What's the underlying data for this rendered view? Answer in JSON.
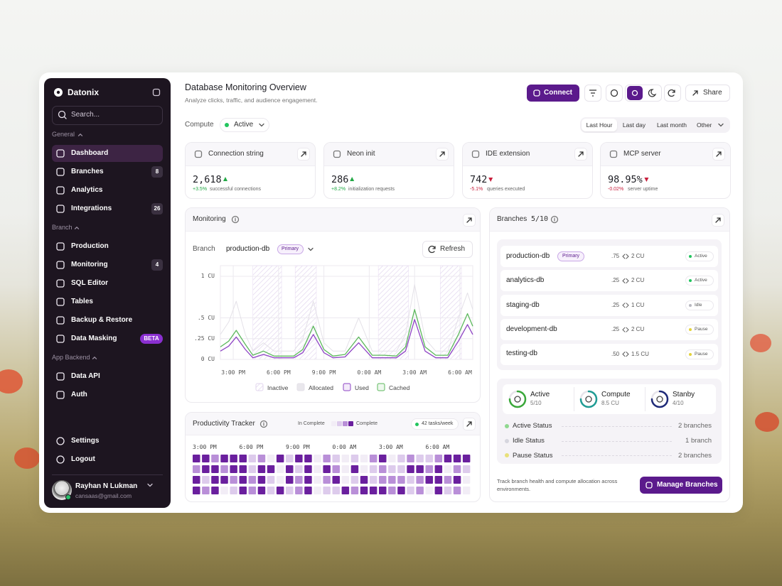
{
  "sidebar": {
    "brand": "Datonix",
    "search_placeholder": "Search...",
    "sections": [
      {
        "title": "General",
        "items": [
          {
            "label": "Dashboard",
            "active": true
          },
          {
            "label": "Branches",
            "badge": 8
          },
          {
            "label": "Analytics"
          },
          {
            "label": "Integrations",
            "badge": 26
          }
        ]
      },
      {
        "title": "Branch",
        "items": [
          {
            "label": "Production"
          },
          {
            "label": "Monitoring",
            "badge": 4
          },
          {
            "label": "SQL Editor"
          },
          {
            "label": "Tables"
          },
          {
            "label": "Backup & Restore"
          },
          {
            "label": "Data Masking",
            "tag": "BETA"
          }
        ]
      },
      {
        "title": "App Backend",
        "items": [
          {
            "label": "Data API"
          },
          {
            "label": "Auth"
          }
        ]
      }
    ],
    "bottom_items": [
      {
        "label": "Settings"
      },
      {
        "label": "Logout"
      }
    ],
    "user": {
      "name": "Rayhan N Lukman",
      "email": "cansaas@gmail.com"
    }
  },
  "header": {
    "title": "Database Monitoring Overview",
    "subtitle": "Analyze clicks, traffic, and audience engagement.",
    "connect": "Connect",
    "share": "Share"
  },
  "compute": {
    "label": "Compute",
    "status": "Active"
  },
  "time_filters": [
    "Last Hour",
    "Last day",
    "Last month",
    "Other"
  ],
  "time_filter_active": 0,
  "stats": [
    {
      "title": "Connection string",
      "value": "2,618",
      "trend": "up",
      "delta": "+3.5%",
      "caption": "successful connections"
    },
    {
      "title": "Neon init",
      "value": "286",
      "trend": "up",
      "delta": "+8.2%",
      "caption": "initialization requests"
    },
    {
      "title": "IDE extension",
      "value": "742",
      "trend": "down",
      "delta": "-5.1%",
      "caption": "queries executed"
    },
    {
      "title": "MCP server",
      "value": "98.95%",
      "trend": "down",
      "delta": "-0.02%",
      "caption": "server uptime"
    }
  ],
  "chart_data": [
    {
      "type": "line",
      "title": "Monitoring",
      "branch_label": "Branch",
      "branch": "production-db",
      "branch_badge": "Primary",
      "refresh_label": "Refresh",
      "x": [
        -0.85,
        -0.3,
        0.2,
        0.8,
        1.3,
        2,
        2.7,
        3.2,
        4,
        4.6,
        5.3,
        6,
        6.6,
        7.4,
        8.3,
        9.2,
        10,
        10.8,
        11.4,
        12,
        12.7,
        13.4,
        14.2,
        14.9,
        15.5,
        15.85
      ],
      "xlim": [
        -0.85,
        15.85
      ],
      "xticks": [
        {
          "value": 0,
          "label": "3:00 PM"
        },
        {
          "value": 3,
          "label": "6:00 PM"
        },
        {
          "value": 6,
          "label": "9:00 PM"
        },
        {
          "value": 9,
          "label": "0:00 AM"
        },
        {
          "value": 12,
          "label": "3:00 AM"
        },
        {
          "value": 15,
          "label": "6:00 AM"
        }
      ],
      "ylim": [
        0,
        1
      ],
      "yticks": [
        {
          "value": 0,
          "label": "0 CU"
        },
        {
          "value": 0.25,
          "label": ".25 CU"
        },
        {
          "value": 0.5,
          "label": ".5 CU"
        },
        {
          "value": 1,
          "label": "1 CU"
        }
      ],
      "grid": true,
      "inactive_label": "Inactive",
      "inactive_ranges": [
        [
          1.3,
          3.2
        ],
        [
          4.1,
          5.5
        ],
        [
          9.6,
          11.6
        ],
        [
          13.7,
          15.1
        ]
      ],
      "series": [
        {
          "name": "Allocated",
          "color": "#e4e1e8",
          "values": [
            0.3,
            0.45,
            0.7,
            0.3,
            0.1,
            0.2,
            0.1,
            0.1,
            0.1,
            0.25,
            0.7,
            0.2,
            0.1,
            0.1,
            0.5,
            0.1,
            0.1,
            0.1,
            0.3,
            0.9,
            0.25,
            0.1,
            0.1,
            0.5,
            0.8,
            0.6
          ]
        },
        {
          "name": "Used",
          "color": "#8e44c4",
          "values": [
            0.1,
            0.16,
            0.27,
            0.12,
            0.02,
            0.06,
            0.02,
            0.02,
            0.02,
            0.08,
            0.3,
            0.08,
            0.02,
            0.03,
            0.2,
            0.02,
            0.02,
            0.02,
            0.1,
            0.48,
            0.1,
            0.02,
            0.02,
            0.22,
            0.42,
            0.3
          ]
        },
        {
          "name": "Cached",
          "color": "#5cb85c",
          "values": [
            0.15,
            0.22,
            0.35,
            0.18,
            0.05,
            0.1,
            0.04,
            0.04,
            0.04,
            0.12,
            0.4,
            0.12,
            0.04,
            0.06,
            0.27,
            0.05,
            0.05,
            0.04,
            0.15,
            0.6,
            0.15,
            0.05,
            0.05,
            0.3,
            0.55,
            0.4
          ]
        }
      ]
    },
    {
      "type": "heatmap",
      "title": "Productivity Tracker",
      "legend_low": "In Complete",
      "legend_high": "Complete",
      "badge": "42 tasks/week",
      "columns": [
        "3:00 PM",
        "6:00 PM",
        "9:00 PM",
        "0:00 AM",
        "3:00 AM",
        "6:00 AM"
      ],
      "colors": [
        "#f2edf6",
        "#ddcbec",
        "#b98fd8",
        "#6a1f9e"
      ],
      "values": [
        [
          3,
          3,
          2,
          3,
          3,
          3,
          1,
          2,
          0,
          3,
          1,
          3,
          3,
          0,
          2,
          1,
          0,
          1,
          0,
          2,
          3,
          0,
          1,
          2,
          1,
          1,
          2,
          3,
          3,
          3
        ],
        [
          2,
          3,
          3,
          2,
          3,
          3,
          1,
          3,
          3,
          0,
          3,
          1,
          3,
          0,
          3,
          2,
          0,
          3,
          0,
          1,
          2,
          1,
          1,
          3,
          3,
          2,
          3,
          0,
          2,
          1
        ],
        [
          3,
          1,
          3,
          3,
          2,
          3,
          2,
          3,
          1,
          0,
          3,
          2,
          3,
          0,
          2,
          3,
          0,
          1,
          3,
          1,
          2,
          2,
          2,
          1,
          2,
          3,
          3,
          2,
          3,
          0
        ],
        [
          3,
          2,
          3,
          0,
          1,
          3,
          2,
          3,
          1,
          3,
          1,
          2,
          3,
          0,
          1,
          1,
          3,
          2,
          3,
          3,
          3,
          2,
          3,
          1,
          2,
          0,
          3,
          1,
          2,
          0
        ]
      ]
    }
  ],
  "branches": {
    "title": "Branches",
    "count": "5/10",
    "rows": [
      {
        "name": "production-db",
        "badge": "Primary",
        "ratio": ".75",
        "compute": "2 CU",
        "status": "Active",
        "status_color": "#22c55e"
      },
      {
        "name": "analytics-db",
        "ratio": ".25",
        "compute": "2 CU",
        "status": "Active",
        "status_color": "#22c55e"
      },
      {
        "name": "staging-db",
        "ratio": ".25",
        "compute": "1 CU",
        "status": "Idle",
        "status_color": "#b8b8c0"
      },
      {
        "name": "development-db",
        "ratio": ".25",
        "compute": "2 CU",
        "status": "Pause",
        "status_color": "#e3d23a"
      },
      {
        "name": "testing-db",
        "ratio": ".50",
        "compute": "1.5 CU",
        "status": "Pause",
        "status_color": "#e3d23a"
      }
    ],
    "summary": [
      {
        "label": "Active",
        "value": "5/10",
        "color": "#3aa83a"
      },
      {
        "label": "Compute",
        "value": "8.5 CU",
        "color": "#1f9c94"
      },
      {
        "label": "Stanby",
        "value": "4/10",
        "color": "#1e2a78"
      }
    ],
    "status_list": [
      {
        "label": "Active Status",
        "value": "2 branches",
        "color": "#8fd88f"
      },
      {
        "label": "Idle Status",
        "value": "1 branch",
        "color": "#d6d6de"
      },
      {
        "label": "Pause Status",
        "value": "2 branches",
        "color": "#e8e07a"
      }
    ],
    "footer": "Track branch health and compute allocation across environments.",
    "manage": "Manage Branches"
  }
}
